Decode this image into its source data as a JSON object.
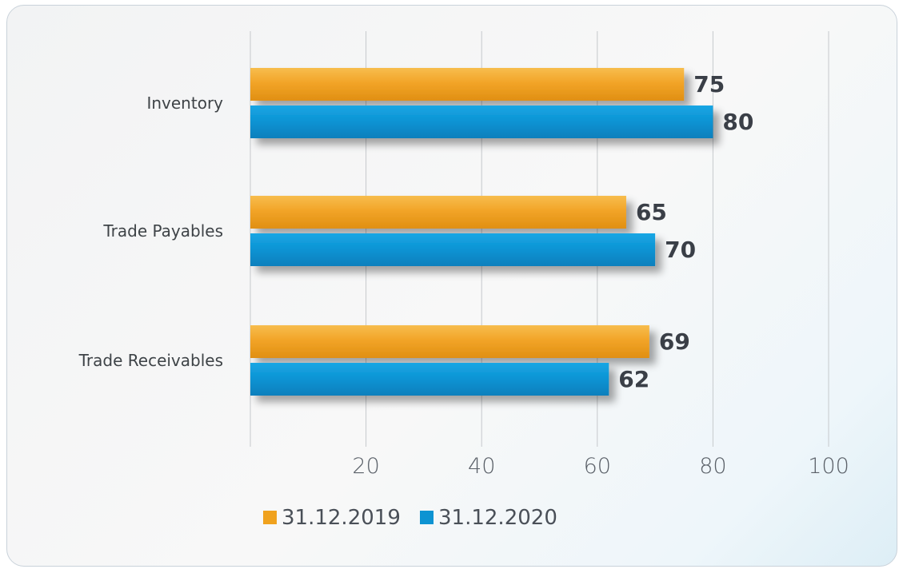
{
  "chart_data": {
    "type": "bar",
    "orientation": "horizontal",
    "categories": [
      "Inventory",
      "Trade Payables",
      "Trade Receivables"
    ],
    "series": [
      {
        "name": "31.12.2019",
        "values": [
          75,
          65,
          69
        ],
        "color": "#f0a21e"
      },
      {
        "name": "31.12.2020",
        "values": [
          80,
          70,
          62
        ],
        "color": "#0d93d2"
      }
    ],
    "xlim": [
      0,
      100
    ],
    "x_ticks": [
      20,
      40,
      60,
      80,
      100
    ],
    "grid": true,
    "legend_position": "bottom"
  }
}
